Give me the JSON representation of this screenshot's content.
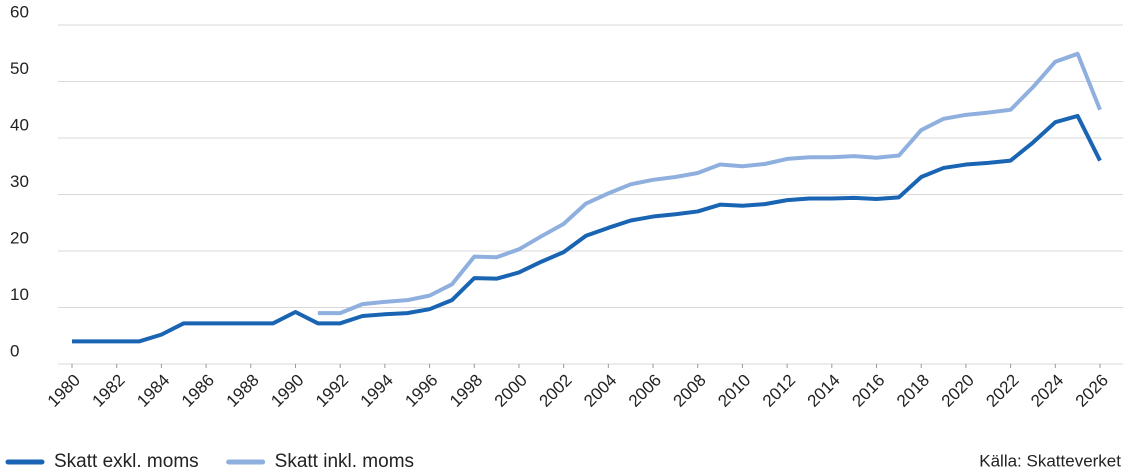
{
  "chart_data": {
    "type": "line",
    "x": [
      1980,
      1981,
      1982,
      1983,
      1984,
      1985,
      1986,
      1987,
      1988,
      1989,
      1990,
      1991,
      1992,
      1993,
      1994,
      1995,
      1996,
      1997,
      1998,
      1999,
      2000,
      2001,
      2002,
      2003,
      2004,
      2005,
      2006,
      2007,
      2008,
      2009,
      2010,
      2011,
      2012,
      2013,
      2014,
      2015,
      2016,
      2017,
      2018,
      2019,
      2020,
      2021,
      2022,
      2023,
      2024,
      2025,
      2026
    ],
    "series": [
      {
        "name": "Skatt exkl. moms",
        "color": "#1a64b4",
        "values": [
          4,
          4,
          4,
          4,
          5.2,
          7.2,
          7.2,
          7.2,
          7.2,
          7.2,
          9.2,
          7.2,
          7.2,
          8.5,
          8.8,
          9.0,
          9.7,
          11.3,
          15.2,
          15.1,
          16.2,
          18.1,
          19.8,
          22.7,
          24.1,
          25.4,
          26.1,
          26.5,
          27.0,
          28.2,
          28.0,
          28.3,
          29.0,
          29.3,
          29.3,
          29.4,
          29.2,
          29.5,
          33.1,
          34.7,
          35.3,
          35.6,
          36.0,
          39.2,
          42.8,
          43.9,
          36.0
        ]
      },
      {
        "name": "Skatt inkl. moms",
        "color": "#8fb0de",
        "values": [
          null,
          null,
          null,
          null,
          null,
          null,
          null,
          null,
          null,
          null,
          null,
          9.0,
          9.0,
          10.6,
          11.0,
          11.3,
          12.1,
          14.1,
          19.0,
          18.9,
          20.3,
          22.6,
          24.8,
          28.4,
          30.2,
          31.8,
          32.6,
          33.1,
          33.8,
          35.3,
          35.0,
          35.4,
          36.3,
          36.6,
          36.6,
          36.8,
          36.5,
          36.9,
          41.4,
          43.4,
          44.1,
          44.5,
          45.0,
          49.0,
          53.5,
          54.9,
          45.0
        ]
      }
    ],
    "xlim": [
      1980,
      2026
    ],
    "xticks": [
      1980,
      1982,
      1984,
      1986,
      1988,
      1990,
      1992,
      1994,
      1996,
      1998,
      2000,
      2002,
      2004,
      2006,
      2008,
      2010,
      2012,
      2014,
      2016,
      2018,
      2020,
      2022,
      2024,
      2026
    ],
    "ylim": [
      0,
      60
    ],
    "yticks": [
      0,
      10,
      20,
      30,
      40,
      50,
      60
    ],
    "grid": true,
    "legend": "bottom-left",
    "annotations": [
      "Källa: Skatteverket"
    ]
  }
}
